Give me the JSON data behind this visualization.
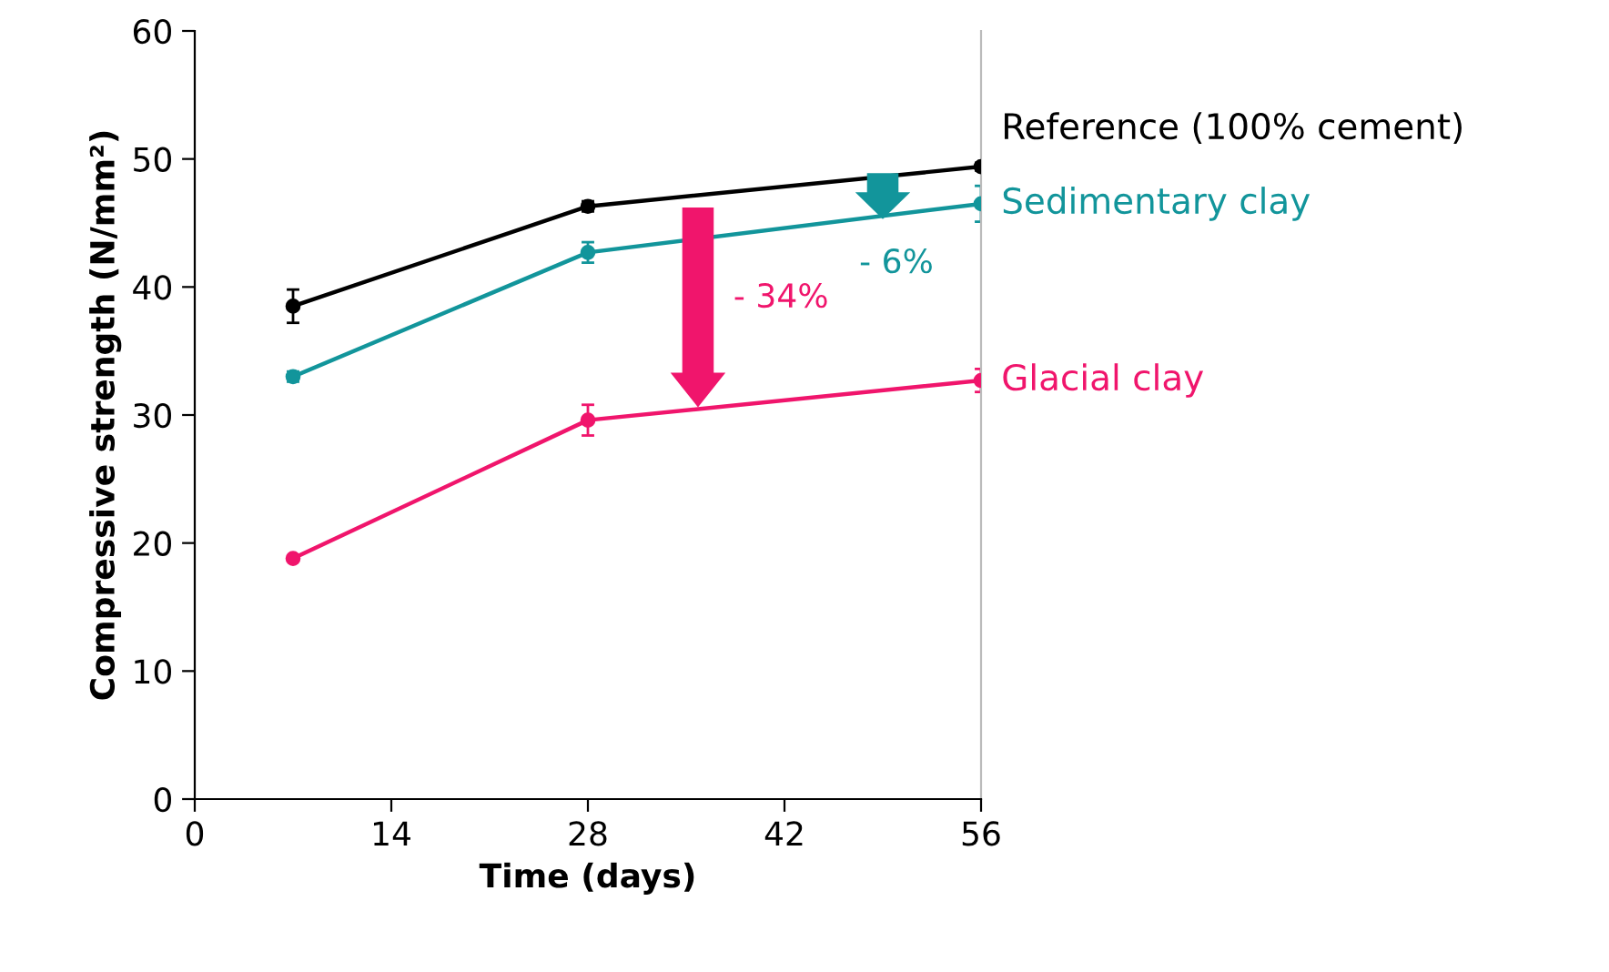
{
  "chart_data": {
    "type": "line",
    "xlabel": "Time (days)",
    "ylabel": "Compressive strength (N/mm²)",
    "xlim": [
      0,
      56
    ],
    "xticks": [
      0,
      14,
      28,
      42,
      56
    ],
    "ylim": [
      0,
      60
    ],
    "yticks": [
      0,
      10,
      20,
      30,
      40,
      50,
      60
    ],
    "grid": false,
    "legend": "right",
    "marker": "circle",
    "line_style": "solid",
    "x": [
      7,
      28,
      56
    ],
    "series": [
      {
        "name": "Reference (100% cement)",
        "color": "#000000",
        "values": [
          38.5,
          46.3,
          49.4
        ],
        "errors": [
          1.3,
          0.4,
          0.3
        ]
      },
      {
        "name": "Sedimentary clay",
        "color": "#12959b",
        "values": [
          33.0,
          42.7,
          46.5
        ],
        "errors": [
          0.4,
          0.8,
          1.4
        ]
      },
      {
        "name": "Glacial clay",
        "color": "#f0156c",
        "values": [
          18.8,
          29.6,
          32.7
        ],
        "errors": [
          null,
          1.2,
          0.9
        ]
      }
    ],
    "annotations": [
      "- 34%",
      "- 6%"
    ]
  }
}
